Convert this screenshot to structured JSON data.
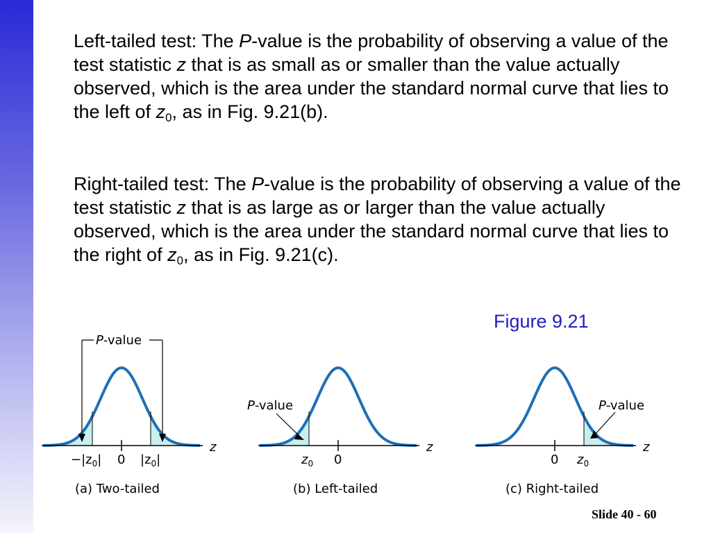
{
  "paragraphs": {
    "left_tailed": {
      "lead": "Left-tailed test: The ",
      "p_symbol": "P",
      "part1": "-value is the probability of observing a value of the test statistic ",
      "z_symbol": "z",
      "part2": " that is as small as or smaller than the value actually observed, which is the area under the standard normal curve that lies to the left of ",
      "z0_symbol": "z",
      "z0_subscript": "0",
      "part3": ", as in Fig. 9.21(b)."
    },
    "right_tailed": {
      "lead": "Right-tailed test: The ",
      "p_symbol": "P",
      "part1": "-value is the probability of observing a value of the test statistic ",
      "z_symbol": "z",
      "part2": " that is as large as or larger than the value actually observed, which is the area under the standard normal curve that lies to the right of ",
      "z0_symbol": "z",
      "z0_subscript": "0",
      "part3": ", as in Fig. 9.21(c)."
    }
  },
  "figure_label": "Figure 9.21",
  "panels": {
    "two_tailed": {
      "pvalue_p": "P",
      "pvalue_rest": "-value",
      "axis_var": "z",
      "tick_neg": "−|z",
      "tick_neg_sub": "0",
      "tick_neg_close": "|",
      "tick_zero": "0",
      "tick_pos": "|z",
      "tick_pos_sub": "0",
      "tick_pos_close": "|",
      "caption": "(a) Two-tailed"
    },
    "left_tailed": {
      "pvalue_p": "P",
      "pvalue_rest": "-value",
      "axis_var": "z",
      "tick_z0": "z",
      "tick_z0_sub": "0",
      "tick_zero": "0",
      "caption": "(b) Left-tailed"
    },
    "right_tailed": {
      "pvalue_p": "P",
      "pvalue_rest": "-value",
      "axis_var": "z",
      "tick_zero": "0",
      "tick_z0": "z",
      "tick_z0_sub": "0",
      "caption": "(c) Right-tailed"
    }
  },
  "slide_number": "Slide 40 - 60",
  "colors": {
    "curve": "#1f6fb5",
    "shade": "#c8eef0",
    "figure_label": "#2020c0",
    "side_bar_top": "#2a2ad6"
  }
}
